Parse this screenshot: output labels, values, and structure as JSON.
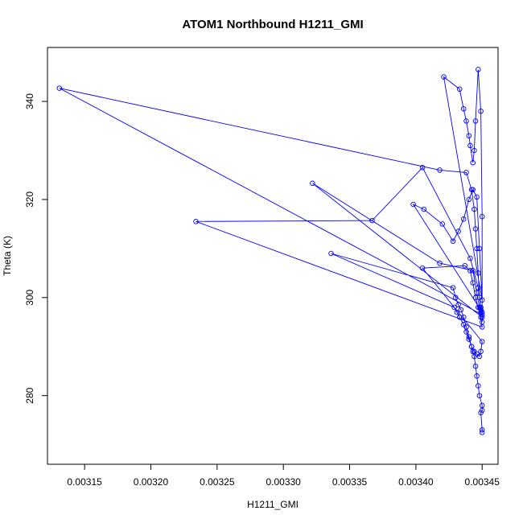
{
  "chart_data": {
    "type": "line",
    "title": "ATOM1 Northbound H1211_GMI",
    "xlabel": "H1211_GMI",
    "ylabel": "Theta (K)",
    "xlim": [
      0.003122,
      0.003462
    ],
    "ylim": [
      266,
      351
    ],
    "x_ticks": [
      0.00315,
      0.0032,
      0.00325,
      0.0033,
      0.00335,
      0.0034,
      0.00345
    ],
    "x_tick_labels": [
      "0.00315",
      "0.00320",
      "0.00325",
      "0.00330",
      "0.00335",
      "0.00340",
      "0.00345"
    ],
    "y_ticks": [
      280,
      300,
      320,
      340
    ],
    "y_tick_labels": [
      "280",
      "300",
      "320",
      "340"
    ],
    "grid": false,
    "series_color": "#0000ff",
    "series": [
      {
        "marker": "open-circle",
        "x": [
          0.00345,
          0.00345,
          0.003449,
          0.00345,
          0.00345,
          0.003448,
          0.003447,
          0.003446,
          0.003445,
          0.003444,
          0.003443,
          0.003442,
          0.00344,
          0.003438,
          0.003436,
          0.003434,
          0.003432,
          0.00343,
          0.003428,
          0.003336,
          0.003429,
          0.003431,
          0.003433,
          0.003436,
          0.003438,
          0.00344,
          0.003442,
          0.003444,
          0.003446,
          0.003448,
          0.003449,
          0.00345,
          0.003405,
          0.003437,
          0.003441,
          0.003443,
          0.003445,
          0.003447,
          0.003449,
          0.00345,
          0.003234,
          0.003367,
          0.003405,
          0.003441,
          0.003447,
          0.003449,
          0.00345,
          0.003322,
          0.003418,
          0.003443,
          0.003446,
          0.003448,
          0.003449,
          0.00345,
          0.003131,
          0.003418,
          0.003438,
          0.003442,
          0.003444,
          0.003445,
          0.003446,
          0.003447,
          0.003448,
          0.003449,
          0.00345,
          0.003398,
          0.003406,
          0.00342,
          0.003428,
          0.003432,
          0.003436,
          0.00344,
          0.003443,
          0.003446,
          0.003448,
          0.00345,
          0.003421,
          0.003433,
          0.003436,
          0.003438,
          0.00344,
          0.003441,
          0.003443,
          0.003444,
          0.003445,
          0.003447,
          0.003449,
          0.00345,
          0.00345
        ],
        "y": [
          272.5,
          273.0,
          276.5,
          277.0,
          278.0,
          280.0,
          282.0,
          284.0,
          286.0,
          288.0,
          289.0,
          290.0,
          292.0,
          294.0,
          296.0,
          297.5,
          298.5,
          300.0,
          302.0,
          309.0,
          298.0,
          297.0,
          296.0,
          294.5,
          293.0,
          291.5,
          290.0,
          289.0,
          288.5,
          288.0,
          289.0,
          291.0,
          306.0,
          306.5,
          305.5,
          303.0,
          300.0,
          298.0,
          296.0,
          294.0,
          315.5,
          315.7,
          326.5,
          308.0,
          302.0,
          298.0,
          296.0,
          323.3,
          307.0,
          305.5,
          301.0,
          298.0,
          297.0,
          296.5,
          342.7,
          326.0,
          325.5,
          322.0,
          318.0,
          314.0,
          310.0,
          305.0,
          300.0,
          297.5,
          297.0,
          319.0,
          318.0,
          315.0,
          311.5,
          313.5,
          316.0,
          320.0,
          322.0,
          320.5,
          310.0,
          299.5,
          345.0,
          342.5,
          338.5,
          336.0,
          333.0,
          331.0,
          327.5,
          330.0,
          336.0,
          346.5,
          338.0,
          316.5,
          295.0
        ]
      }
    ]
  }
}
